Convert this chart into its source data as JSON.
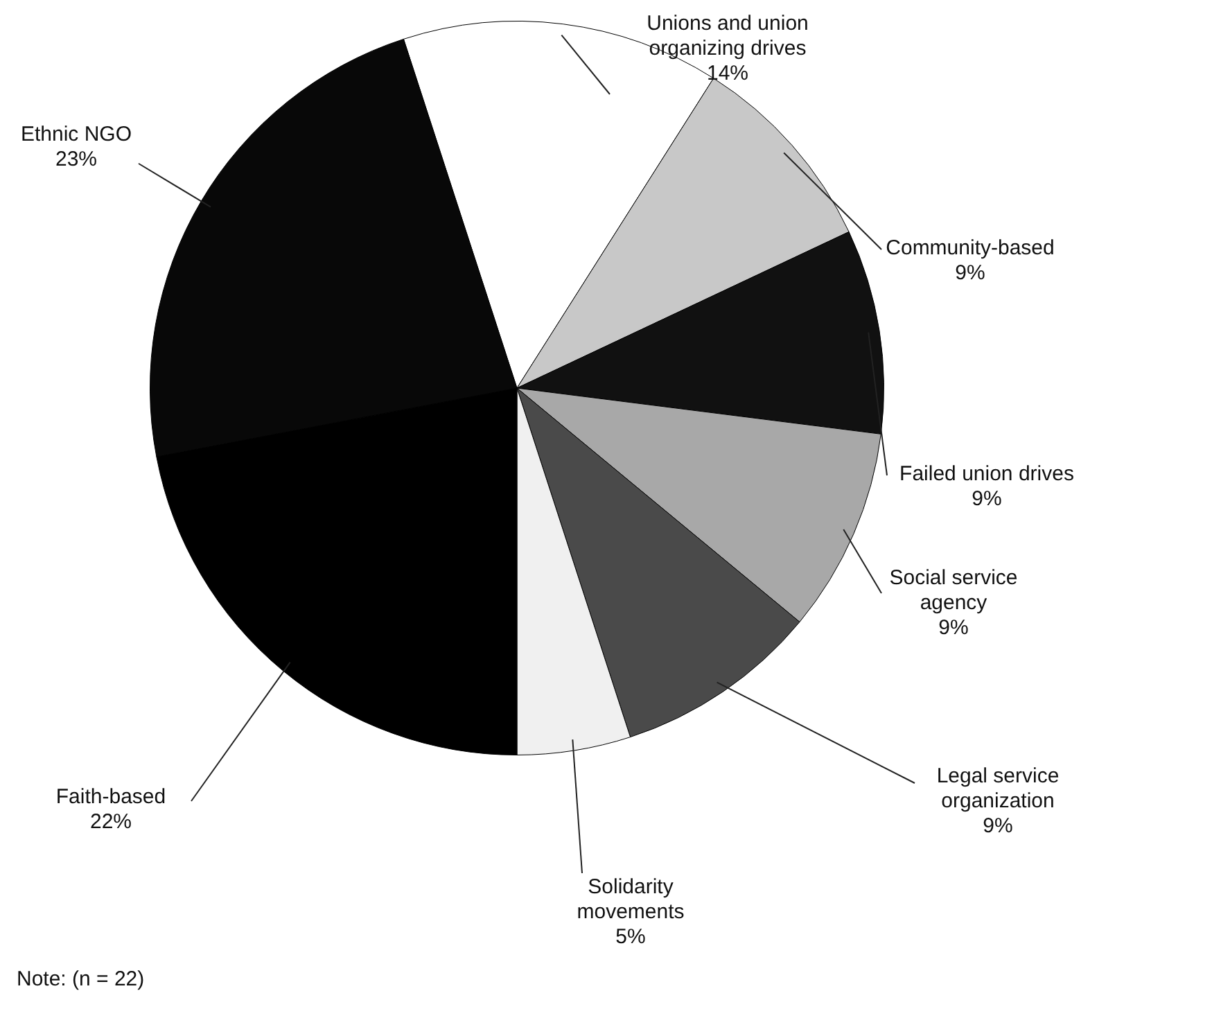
{
  "chart_data": {
    "type": "pie",
    "categories": [
      "Unions and union organizing drives",
      "Community-based",
      "Failed union drives",
      "Social service agency",
      "Legal service organization",
      "Solidarity movements",
      "Faith-based",
      "Ethnic NGO"
    ],
    "values": [
      14,
      9,
      9,
      9,
      9,
      5,
      22,
      23
    ],
    "value_labels": [
      "14%",
      "9%",
      "9%",
      "9%",
      "9%",
      "5%",
      "22%",
      "23%"
    ],
    "colors": [
      "#ffffff",
      "#c8c8c8",
      "#111111",
      "#a8a8a8",
      "#4a4a4a",
      "#f0f0f0",
      "#000000",
      "#080808"
    ],
    "annotations": [
      "Note: (n = 22)"
    ]
  }
}
